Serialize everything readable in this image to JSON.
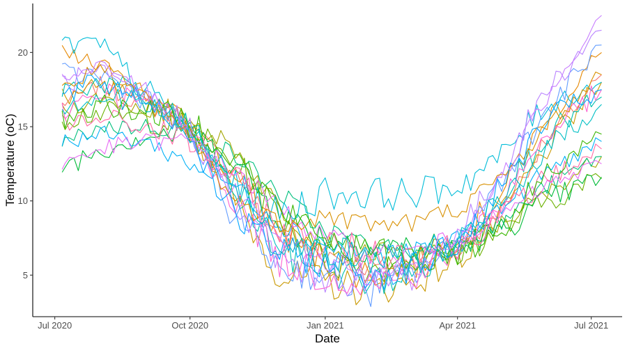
{
  "chart_data": {
    "type": "line",
    "title": "",
    "xlabel": "Date",
    "ylabel": "Temperature (oC)",
    "x_tick_labels": [
      "Jul 2020",
      "Oct 2020",
      "Jan 2021",
      "Apr 2021",
      "Jul 2021"
    ],
    "x_ticks": [
      "2020-07-01",
      "2020-10-01",
      "2021-01-01",
      "2021-04-01",
      "2021-07-01"
    ],
    "y_tick_labels": [
      "5",
      "10",
      "15",
      "20"
    ],
    "y_ticks": [
      5,
      10,
      15,
      20
    ],
    "xlim": [
      "2020-06-16",
      "2021-07-22"
    ],
    "ylim": [
      2.2,
      23.3
    ],
    "grid": false,
    "legend": "none",
    "series_count": 20,
    "colors": [
      "#F8766D",
      "#E58700",
      "#C99800",
      "#A3A500",
      "#6BB100",
      "#00BA38",
      "#00BF7D",
      "#00C0AF",
      "#00BCD8",
      "#00B0F6",
      "#619CFF",
      "#B983FF",
      "#E76BF3",
      "#FD61D1",
      "#FF67A4",
      "#D89000",
      "#39B600",
      "#00A5FF",
      "#C77CFF",
      "#00BFC4"
    ],
    "series": [
      {
        "x": [
          "2020-07-06",
          "2020-08-01",
          "2020-09-01",
          "2020-10-01",
          "2020-11-01",
          "2020-12-01",
          "2021-01-01",
          "2021-02-01",
          "2021-03-01",
          "2021-04-01",
          "2021-05-01",
          "2021-06-01",
          "2021-07-08"
        ],
        "y": [
          16.5,
          17.8,
          16.5,
          15.0,
          12.0,
          7.5,
          6.5,
          5.5,
          5.8,
          6.5,
          9.5,
          14.0,
          18.5
        ]
      },
      {
        "x": [
          "2020-07-06",
          "2020-08-01",
          "2020-09-01",
          "2020-10-01",
          "2020-11-01",
          "2020-12-01",
          "2021-01-01",
          "2021-02-01",
          "2021-03-01",
          "2021-04-01",
          "2021-05-01",
          "2021-06-01",
          "2021-07-08"
        ],
        "y": [
          19.8,
          19.0,
          17.2,
          14.8,
          11.5,
          8.0,
          6.0,
          5.0,
          5.5,
          7.5,
          10.5,
          15.5,
          20.0
        ]
      },
      {
        "x": [
          "2020-07-06",
          "2020-08-01",
          "2020-09-01",
          "2020-10-01",
          "2020-11-01",
          "2020-12-01",
          "2021-01-01",
          "2021-02-01",
          "2021-03-01",
          "2021-04-01",
          "2021-05-01",
          "2021-06-01",
          "2021-07-08"
        ],
        "y": [
          17.0,
          17.5,
          16.8,
          15.2,
          10.0,
          5.0,
          4.5,
          4.0,
          4.5,
          6.0,
          9.0,
          13.5,
          18.0
        ]
      },
      {
        "x": [
          "2020-07-06",
          "2020-08-01",
          "2020-09-01",
          "2020-10-01",
          "2020-11-01",
          "2020-12-01",
          "2021-01-01",
          "2021-02-01",
          "2021-03-01",
          "2021-04-01",
          "2021-05-01",
          "2021-06-01",
          "2021-07-08"
        ],
        "y": [
          16.0,
          17.0,
          16.2,
          15.5,
          13.5,
          9.5,
          7.0,
          6.5,
          6.5,
          7.0,
          8.5,
          10.5,
          13.0
        ]
      },
      {
        "x": [
          "2020-07-06",
          "2020-08-01",
          "2020-09-01",
          "2020-10-01",
          "2020-11-01",
          "2020-12-01",
          "2021-01-01",
          "2021-02-01",
          "2021-03-01",
          "2021-04-01",
          "2021-05-01",
          "2021-06-01",
          "2021-07-08"
        ],
        "y": [
          15.5,
          16.0,
          15.5,
          15.0,
          12.5,
          9.0,
          6.0,
          5.5,
          6.0,
          6.5,
          8.0,
          10.0,
          11.5
        ]
      },
      {
        "x": [
          "2020-07-06",
          "2020-08-01",
          "2020-09-01",
          "2020-10-01",
          "2020-11-01",
          "2020-12-01",
          "2021-01-01",
          "2021-02-01",
          "2021-03-01",
          "2021-04-01",
          "2021-05-01",
          "2021-06-01",
          "2021-07-08"
        ],
        "y": [
          12.3,
          13.5,
          14.5,
          14.5,
          12.5,
          9.0,
          7.5,
          7.0,
          6.8,
          7.0,
          8.0,
          10.0,
          11.6
        ]
      },
      {
        "x": [
          "2020-07-06",
          "2020-08-01",
          "2020-09-01",
          "2020-10-01",
          "2020-11-01",
          "2020-12-01",
          "2021-01-01",
          "2021-02-01",
          "2021-03-01",
          "2021-04-01",
          "2021-05-01",
          "2021-06-01",
          "2021-07-08"
        ],
        "y": [
          13.8,
          15.0,
          15.0,
          14.8,
          13.0,
          10.5,
          8.0,
          7.0,
          6.5,
          7.0,
          8.5,
          11.0,
          13.0
        ]
      },
      {
        "x": [
          "2020-07-06",
          "2020-08-01",
          "2020-09-01",
          "2020-10-01",
          "2020-11-01",
          "2020-12-01",
          "2021-01-01",
          "2021-02-01",
          "2021-03-01",
          "2021-04-01",
          "2021-05-01",
          "2021-06-01",
          "2021-07-08"
        ],
        "y": [
          17.5,
          18.0,
          17.0,
          15.0,
          10.5,
          6.5,
          5.5,
          4.5,
          5.0,
          7.0,
          10.5,
          14.5,
          17.0
        ]
      },
      {
        "x": [
          "2020-07-06",
          "2020-08-01",
          "2020-09-01",
          "2020-10-01",
          "2020-11-01",
          "2020-12-01",
          "2021-01-01",
          "2021-02-01",
          "2021-03-01",
          "2021-04-01",
          "2021-05-01",
          "2021-06-01",
          "2021-07-08"
        ],
        "y": [
          20.5,
          20.5,
          17.5,
          14.5,
          11.0,
          9.0,
          10.5,
          10.5,
          10.5,
          11.0,
          13.0,
          16.5,
          18.0
        ]
      },
      {
        "x": [
          "2020-07-06",
          "2020-08-01",
          "2020-09-01",
          "2020-10-01",
          "2020-11-01",
          "2020-12-01",
          "2021-01-01",
          "2021-02-01",
          "2021-03-01",
          "2021-04-01",
          "2021-05-01",
          "2021-06-01",
          "2021-07-08"
        ],
        "y": [
          14.0,
          14.5,
          14.0,
          12.5,
          11.0,
          8.5,
          7.0,
          6.5,
          6.5,
          7.5,
          9.5,
          12.0,
          14.0
        ]
      },
      {
        "x": [
          "2020-07-06",
          "2020-08-01",
          "2020-09-01",
          "2020-10-01",
          "2020-11-01",
          "2020-12-01",
          "2021-01-01",
          "2021-02-01",
          "2021-03-01",
          "2021-04-01",
          "2021-05-01",
          "2021-06-01",
          "2021-07-08"
        ],
        "y": [
          18.5,
          18.5,
          17.0,
          14.5,
          9.0,
          5.5,
          5.0,
          4.0,
          5.0,
          7.0,
          11.5,
          16.0,
          20.5
        ]
      },
      {
        "x": [
          "2020-07-06",
          "2020-08-01",
          "2020-09-01",
          "2020-10-01",
          "2020-11-01",
          "2020-12-01",
          "2021-01-01",
          "2021-02-01",
          "2021-03-01",
          "2021-04-01",
          "2021-05-01",
          "2021-06-01",
          "2021-07-08"
        ],
        "y": [
          18.0,
          18.5,
          17.0,
          15.0,
          9.5,
          6.0,
          5.0,
          4.5,
          5.0,
          7.5,
          12.0,
          17.5,
          21.5
        ]
      },
      {
        "x": [
          "2020-07-06",
          "2020-08-01",
          "2020-09-01",
          "2020-10-01",
          "2020-11-01",
          "2020-12-01",
          "2021-01-01",
          "2021-02-01",
          "2021-03-01",
          "2021-04-01",
          "2021-05-01",
          "2021-06-01",
          "2021-07-08"
        ],
        "y": [
          12.5,
          13.5,
          14.0,
          14.0,
          12.0,
          9.5,
          7.5,
          6.5,
          6.5,
          7.5,
          9.0,
          11.0,
          12.5
        ]
      },
      {
        "x": [
          "2020-07-06",
          "2020-08-01",
          "2020-09-01",
          "2020-10-01",
          "2020-11-01",
          "2020-12-01",
          "2021-01-01",
          "2021-02-01",
          "2021-03-01",
          "2021-04-01",
          "2021-05-01",
          "2021-06-01",
          "2021-07-08"
        ],
        "y": [
          16.0,
          17.5,
          16.5,
          15.0,
          10.0,
          6.0,
          5.0,
          4.5,
          5.0,
          6.5,
          10.0,
          14.5,
          17.5
        ]
      },
      {
        "x": [
          "2020-07-06",
          "2020-08-01",
          "2020-09-01",
          "2020-10-01",
          "2020-11-01",
          "2020-12-01",
          "2021-01-01",
          "2021-02-01",
          "2021-03-01",
          "2021-04-01",
          "2021-05-01",
          "2021-06-01",
          "2021-07-08"
        ],
        "y": [
          15.0,
          15.5,
          15.0,
          14.0,
          11.5,
          8.0,
          7.0,
          6.5,
          6.5,
          7.0,
          9.0,
          11.5,
          13.5
        ]
      },
      {
        "x": [
          "2020-07-06",
          "2020-08-01",
          "2020-09-01",
          "2020-10-01",
          "2020-11-01",
          "2020-12-01",
          "2021-01-01",
          "2021-02-01",
          "2021-03-01",
          "2021-04-01",
          "2021-05-01",
          "2021-06-01",
          "2021-07-08"
        ],
        "y": [
          17.5,
          19.0,
          17.0,
          14.5,
          10.0,
          8.5,
          9.0,
          8.5,
          8.5,
          9.5,
          11.5,
          15.0,
          18.5
        ]
      },
      {
        "x": [
          "2020-07-06",
          "2020-08-01",
          "2020-09-01",
          "2020-10-01",
          "2020-11-01",
          "2020-12-01",
          "2021-01-01",
          "2021-02-01",
          "2021-03-01",
          "2021-04-01",
          "2021-05-01",
          "2021-06-01",
          "2021-07-08"
        ],
        "y": [
          15.5,
          16.5,
          16.0,
          15.5,
          13.0,
          9.5,
          7.5,
          6.5,
          6.0,
          6.5,
          8.0,
          12.0,
          14.5
        ]
      },
      {
        "x": [
          "2020-07-06",
          "2020-08-01",
          "2020-09-01",
          "2020-10-01",
          "2020-11-01",
          "2020-12-01",
          "2021-01-01",
          "2021-02-01",
          "2021-03-01",
          "2021-04-01",
          "2021-05-01",
          "2021-06-01",
          "2021-07-08"
        ],
        "y": [
          17.0,
          18.0,
          17.0,
          14.5,
          9.0,
          6.5,
          6.0,
          5.0,
          5.5,
          7.0,
          11.0,
          15.5,
          17.5
        ]
      },
      {
        "x": [
          "2020-07-06",
          "2020-08-01",
          "2020-09-01",
          "2020-10-01",
          "2020-11-01",
          "2020-12-01",
          "2021-01-01",
          "2021-02-01",
          "2021-03-01",
          "2021-04-01",
          "2021-05-01",
          "2021-06-01",
          "2021-07-08"
        ],
        "y": [
          18.0,
          19.0,
          17.5,
          15.0,
          10.5,
          7.0,
          6.0,
          5.0,
          5.5,
          7.5,
          11.5,
          17.0,
          22.5
        ]
      },
      {
        "x": [
          "2020-07-06",
          "2020-08-01",
          "2020-09-01",
          "2020-10-01",
          "2020-11-01",
          "2020-12-01",
          "2021-01-01",
          "2021-02-01",
          "2021-03-01",
          "2021-04-01",
          "2021-05-01",
          "2021-06-01",
          "2021-07-08"
        ],
        "y": [
          16.5,
          17.0,
          16.5,
          15.0,
          11.0,
          7.5,
          6.5,
          6.0,
          6.0,
          7.0,
          10.0,
          13.5,
          16.5
        ]
      }
    ]
  }
}
